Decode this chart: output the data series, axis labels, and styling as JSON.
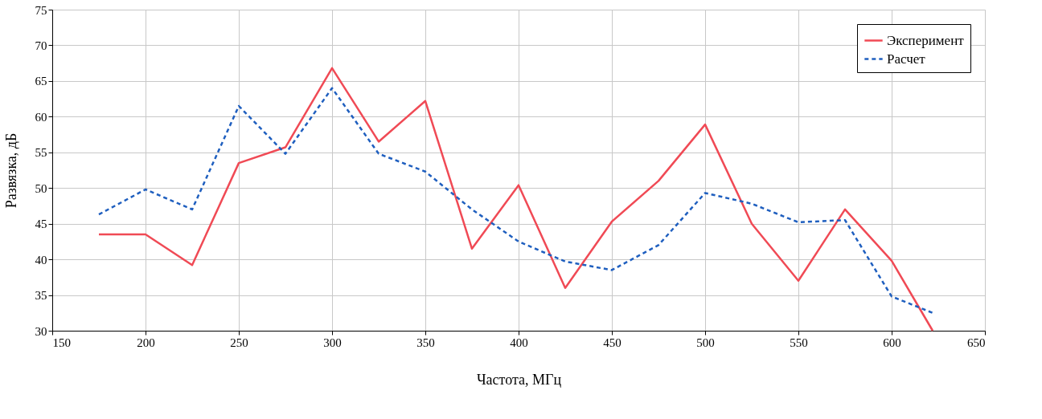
{
  "chart_data": {
    "type": "line",
    "xlabel": "Частота, МГц",
    "ylabel": "Развязка, дБ",
    "xlim": [
      150,
      650
    ],
    "xticks": [
      150,
      200,
      250,
      300,
      350,
      400,
      450,
      500,
      550,
      600,
      650
    ],
    "ylim": [
      30,
      75
    ],
    "yticks": [
      30,
      35,
      40,
      45,
      50,
      55,
      60,
      65,
      70,
      75
    ],
    "grid": true,
    "legend": "top right",
    "marker": "none",
    "series": [
      {
        "name": "Эксперимент",
        "color": "#f04a55",
        "line_style": "solid",
        "x": [
          175,
          200,
          225,
          250,
          275,
          300,
          325,
          350,
          375,
          400,
          425,
          450,
          475,
          500,
          525,
          550,
          575,
          600,
          622
        ],
        "values": [
          43.5,
          43.5,
          39.2,
          53.5,
          55.7,
          66.8,
          56.5,
          62.2,
          41.5,
          50.4,
          36,
          45.3,
          51,
          58.9,
          45,
          37,
          47,
          39.8,
          30
        ]
      },
      {
        "name": "Расчет",
        "color": "#1f5fbf",
        "line_style": "dashed",
        "x": [
          175,
          200,
          225,
          250,
          275,
          300,
          325,
          350,
          375,
          400,
          425,
          450,
          475,
          500,
          525,
          550,
          575,
          600,
          622
        ],
        "values": [
          46.3,
          49.8,
          47,
          61.5,
          54.8,
          64,
          54.8,
          52.3,
          47,
          42.5,
          39.7,
          38.5,
          42,
          49.3,
          47.8,
          45.2,
          45.5,
          34.8,
          32.5
        ]
      }
    ]
  }
}
